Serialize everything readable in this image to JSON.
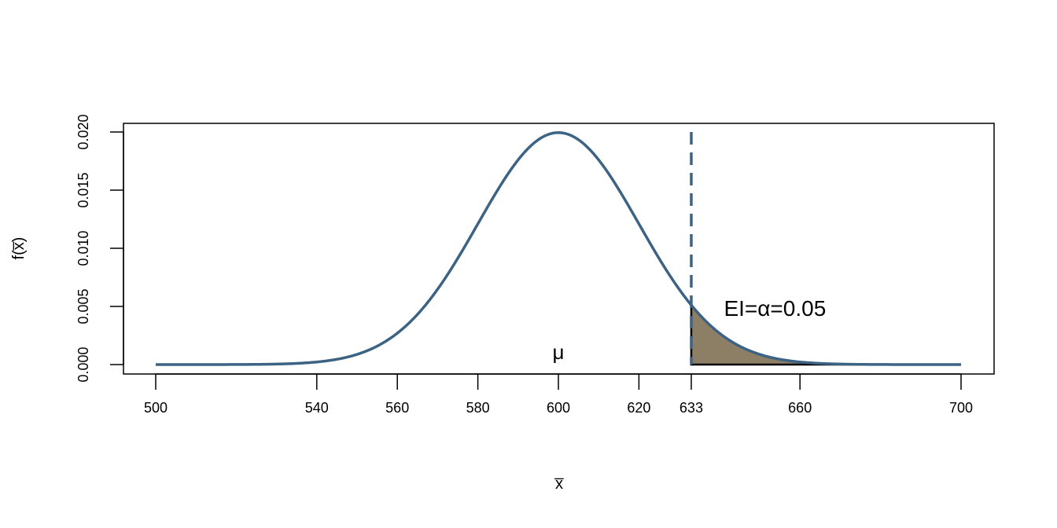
{
  "chart_data": {
    "type": "area",
    "title": "",
    "xlabel": "x̅",
    "ylabel": "f(x̅)",
    "xlim": [
      500,
      700
    ],
    "ylim": [
      0,
      0.02
    ],
    "x_ticks": [
      500,
      540,
      560,
      580,
      600,
      620,
      633,
      660,
      700
    ],
    "y_ticks": [
      "0.000",
      "0.005",
      "0.010",
      "0.015",
      "0.020"
    ],
    "y_tick_values": [
      0,
      0.005,
      0.01,
      0.015,
      0.02
    ],
    "grid": false,
    "distribution": {
      "family": "normal",
      "mean": 600,
      "sd": 20
    },
    "curve_color": "#3d6384",
    "shaded_color": "#8c7f66",
    "critical_value": 633,
    "critical_line_style": "dashed",
    "shaded_region": [
      633,
      700
    ],
    "annotations": {
      "mu_label": "μ",
      "mu_at": [
        600,
        0.0008
      ],
      "alpha_label": "EI=α=0.05",
      "alpha_at": [
        653,
        0.0048
      ]
    }
  }
}
